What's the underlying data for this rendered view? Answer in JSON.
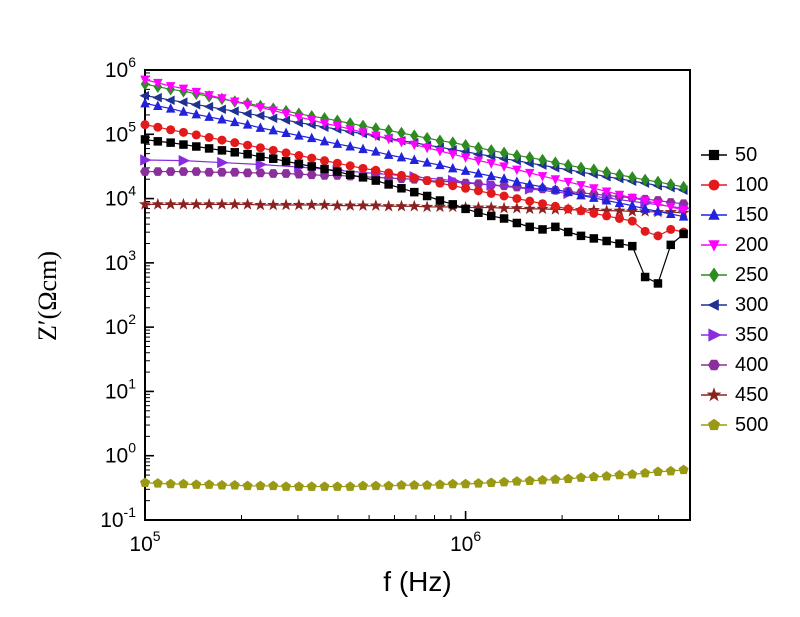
{
  "chart_data": {
    "type": "line",
    "mode": "line+markers",
    "title": "",
    "xlabel": "f (Hz)",
    "ylabel": "Z′(Ωcm)",
    "x_scale": "log",
    "y_scale": "log",
    "values_are_log10": true,
    "xlim_log10": [
      5.0,
      6.7
    ],
    "ylim_log10": [
      -1,
      6
    ],
    "x_major_exponents": [
      5,
      6
    ],
    "y_major_exponents": [
      -1,
      0,
      1,
      2,
      3,
      4,
      5,
      6
    ],
    "legend_position": "right-outside",
    "grid": false,
    "log10_f": [
      5.0,
      5.04,
      5.08,
      5.12,
      5.16,
      5.2,
      5.24,
      5.28,
      5.32,
      5.36,
      5.4,
      5.44,
      5.48,
      5.52,
      5.56,
      5.6,
      5.64,
      5.68,
      5.72,
      5.76,
      5.8,
      5.84,
      5.88,
      5.92,
      5.96,
      6.0,
      6.04,
      6.08,
      6.12,
      6.16,
      6.2,
      6.24,
      6.28,
      6.32,
      6.36,
      6.4,
      6.44,
      6.48,
      6.52,
      6.56,
      6.6,
      6.64,
      6.68
    ],
    "series": [
      {
        "name": "50",
        "color": "#000000",
        "marker": "square",
        "marker_size": 5,
        "log10_z": [
          4.92,
          4.89,
          4.87,
          4.84,
          4.81,
          4.78,
          4.75,
          4.72,
          4.69,
          4.65,
          4.62,
          4.58,
          4.54,
          4.5,
          4.46,
          4.42,
          4.37,
          4.33,
          4.28,
          4.22,
          4.16,
          4.1,
          4.04,
          3.97,
          3.91,
          3.84,
          3.78,
          3.73,
          3.69,
          3.62,
          3.56,
          3.52,
          3.56,
          3.48,
          3.42,
          3.38,
          3.34,
          3.3,
          3.26,
          2.78,
          2.68,
          3.28,
          3.45
        ]
      },
      {
        "name": "100",
        "color": "#e31a1c",
        "marker": "circle",
        "marker_size": 5,
        "log10_z": [
          5.15,
          5.11,
          5.07,
          5.03,
          4.99,
          4.95,
          4.91,
          4.87,
          4.83,
          4.79,
          4.75,
          4.71,
          4.67,
          4.63,
          4.59,
          4.55,
          4.51,
          4.47,
          4.44,
          4.4,
          4.36,
          4.32,
          4.28,
          4.24,
          4.2,
          4.16,
          4.12,
          4.08,
          4.04,
          4.0,
          3.96,
          3.92,
          3.88,
          3.84,
          3.81,
          3.77,
          3.73,
          3.69,
          3.65,
          3.49,
          3.42,
          3.52,
          3.48
        ]
      },
      {
        "name": "150",
        "color": "#2222dd",
        "marker": "triangle-up",
        "marker_size": 5,
        "log10_z": [
          5.48,
          5.44,
          5.4,
          5.35,
          5.31,
          5.27,
          5.23,
          5.19,
          5.15,
          5.1,
          5.06,
          5.02,
          4.98,
          4.94,
          4.89,
          4.85,
          4.81,
          4.77,
          4.73,
          4.68,
          4.64,
          4.6,
          4.56,
          4.52,
          4.47,
          4.43,
          4.39,
          4.35,
          4.31,
          4.26,
          4.22,
          4.18,
          4.14,
          4.1,
          4.05,
          4.01,
          3.97,
          3.93,
          3.89,
          3.84,
          3.8,
          3.76,
          3.72
        ]
      },
      {
        "name": "200",
        "color": "#ff00ff",
        "marker": "triangle-down",
        "marker_size": 5,
        "log10_z": [
          5.85,
          5.8,
          5.75,
          5.71,
          5.66,
          5.61,
          5.56,
          5.51,
          5.46,
          5.42,
          5.37,
          5.32,
          5.27,
          5.22,
          5.17,
          5.13,
          5.08,
          5.03,
          4.98,
          4.93,
          4.88,
          4.84,
          4.79,
          4.74,
          4.69,
          4.64,
          4.59,
          4.55,
          4.5,
          4.45,
          4.4,
          4.35,
          4.3,
          4.26,
          4.21,
          4.16,
          4.11,
          4.06,
          4.01,
          3.97,
          3.92,
          3.87,
          3.82
        ]
      },
      {
        "name": "250",
        "color": "#2e8b22",
        "marker": "diamond",
        "marker_size": 5,
        "log10_z": [
          5.78,
          5.74,
          5.7,
          5.67,
          5.63,
          5.59,
          5.55,
          5.51,
          5.48,
          5.44,
          5.4,
          5.36,
          5.32,
          5.28,
          5.25,
          5.21,
          5.17,
          5.13,
          5.09,
          5.06,
          5.02,
          4.98,
          4.94,
          4.9,
          4.87,
          4.83,
          4.79,
          4.75,
          4.71,
          4.67,
          4.64,
          4.6,
          4.56,
          4.52,
          4.48,
          4.45,
          4.41,
          4.37,
          4.33,
          4.29,
          4.26,
          4.22,
          4.18
        ]
      },
      {
        "name": "300",
        "color": "#1f3191",
        "marker": "triangle-left",
        "marker_size": 5,
        "log10_z": [
          5.6,
          5.57,
          5.53,
          5.5,
          5.46,
          5.43,
          5.39,
          5.36,
          5.32,
          5.29,
          5.25,
          5.22,
          5.18,
          5.15,
          5.11,
          5.08,
          5.04,
          5.01,
          4.97,
          4.94,
          4.9,
          4.87,
          4.83,
          4.8,
          4.76,
          4.73,
          4.69,
          4.66,
          4.62,
          4.59,
          4.55,
          4.52,
          4.48,
          4.45,
          4.41,
          4.38,
          4.34,
          4.31,
          4.27,
          4.24,
          4.2,
          4.17,
          4.13
        ]
      },
      {
        "name": "350",
        "color": "#8a2be2",
        "marker": "triangle-right",
        "marker_size": 6,
        "log10_f": [
          5.0,
          5.12,
          5.24,
          5.36,
          5.48,
          5.6,
          5.72,
          5.84,
          5.96,
          6.08,
          6.2,
          6.32,
          6.44,
          6.56,
          6.68
        ],
        "log10_z": [
          4.6,
          4.59,
          4.56,
          4.53,
          4.49,
          4.44,
          4.39,
          4.34,
          4.28,
          4.21,
          4.15,
          4.08,
          4.01,
          3.93,
          3.85
        ]
      },
      {
        "name": "400",
        "color": "#8a2f9b",
        "marker": "hexagon",
        "marker_size": 5,
        "log10_z": [
          4.42,
          4.42,
          4.42,
          4.42,
          4.42,
          4.41,
          4.41,
          4.41,
          4.4,
          4.4,
          4.39,
          4.39,
          4.38,
          4.37,
          4.36,
          4.36,
          4.35,
          4.34,
          4.33,
          4.32,
          4.31,
          4.3,
          4.28,
          4.27,
          4.26,
          4.24,
          4.23,
          4.21,
          4.2,
          4.18,
          4.16,
          4.15,
          4.13,
          4.11,
          4.09,
          4.07,
          4.05,
          4.03,
          4.01,
          3.99,
          3.97,
          3.94,
          3.92
        ]
      },
      {
        "name": "450",
        "color": "#8b2222",
        "marker": "star",
        "marker_size": 5,
        "log10_z": [
          3.91,
          3.91,
          3.91,
          3.91,
          3.91,
          3.91,
          3.91,
          3.91,
          3.91,
          3.9,
          3.9,
          3.9,
          3.9,
          3.9,
          3.9,
          3.89,
          3.89,
          3.89,
          3.89,
          3.88,
          3.88,
          3.88,
          3.87,
          3.87,
          3.87,
          3.86,
          3.86,
          3.86,
          3.85,
          3.85,
          3.84,
          3.84,
          3.83,
          3.83,
          3.82,
          3.82,
          3.81,
          3.81,
          3.8,
          3.8,
          3.79,
          3.79,
          3.78
        ]
      },
      {
        "name": "500",
        "color": "#999914",
        "marker": "pentagon",
        "marker_size": 5,
        "log10_z": [
          -0.42,
          -0.43,
          -0.44,
          -0.44,
          -0.45,
          -0.45,
          -0.46,
          -0.46,
          -0.47,
          -0.47,
          -0.47,
          -0.48,
          -0.48,
          -0.48,
          -0.48,
          -0.48,
          -0.48,
          -0.47,
          -0.47,
          -0.47,
          -0.46,
          -0.46,
          -0.46,
          -0.45,
          -0.44,
          -0.44,
          -0.43,
          -0.42,
          -0.41,
          -0.4,
          -0.39,
          -0.38,
          -0.37,
          -0.36,
          -0.34,
          -0.33,
          -0.32,
          -0.3,
          -0.29,
          -0.27,
          -0.25,
          -0.24,
          -0.22
        ]
      }
    ]
  }
}
